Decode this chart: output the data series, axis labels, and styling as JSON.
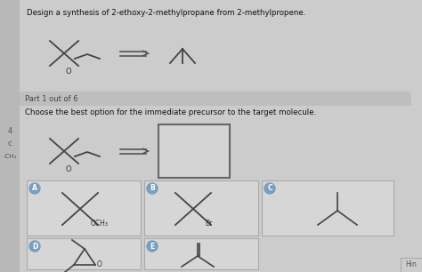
{
  "title": "Design a synthesis of 2-ethoxy-2-methylpropane from 2-methylpropene.",
  "part_label": "Part 1 out of 6",
  "question_text": "Choose the best option for the immediate precursor to the target molecule.",
  "bg_color": "#cccccc",
  "sidebar_color": "#b8b8b8",
  "bar_color": "#c0c0c0",
  "box_color": "#d8d8d8",
  "label_circle_color": "#7a9ec0"
}
